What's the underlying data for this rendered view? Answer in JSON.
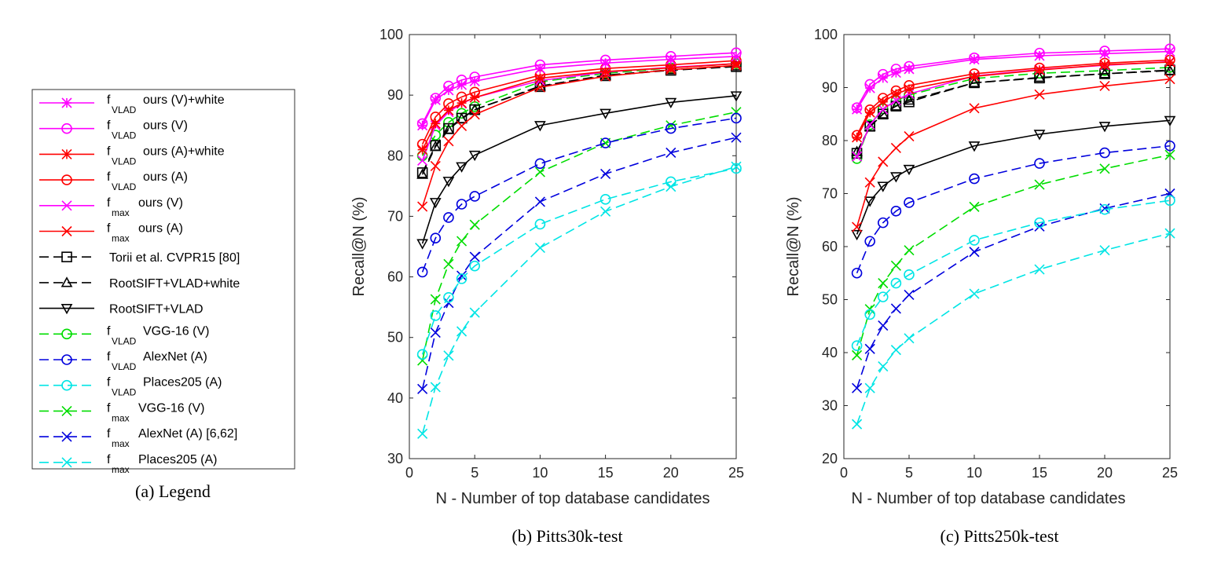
{
  "legend": {
    "caption": "(a) Legend",
    "entries": [
      {
        "main": "f",
        "sub": "VLAD",
        "text": "ours (V)+white",
        "color": "#ff00ff",
        "dash": "solid",
        "marker": "star"
      },
      {
        "main": "f",
        "sub": "VLAD",
        "text": "ours (V)",
        "color": "#ff00ff",
        "dash": "solid",
        "marker": "circle"
      },
      {
        "main": "f",
        "sub": "VLAD",
        "text": "ours (A)+white",
        "color": "#ff0000",
        "dash": "solid",
        "marker": "star"
      },
      {
        "main": "f",
        "sub": "VLAD",
        "text": "ours (A)",
        "color": "#ff0000",
        "dash": "solid",
        "marker": "circle"
      },
      {
        "main": "f",
        "sub": "max",
        "text": "ours (V)",
        "color": "#ff00ff",
        "dash": "solid",
        "marker": "x"
      },
      {
        "main": "f",
        "sub": "max",
        "text": "ours (A)",
        "color": "#ff0000",
        "dash": "solid",
        "marker": "x"
      },
      {
        "main": "",
        "sub": "",
        "text": "Torii et al. CVPR15 [80]",
        "color": "#000000",
        "dash": "dashed",
        "marker": "square"
      },
      {
        "main": "",
        "sub": "",
        "text": "RootSIFT+VLAD+white",
        "color": "#000000",
        "dash": "dashed",
        "marker": "triangle-up"
      },
      {
        "main": "",
        "sub": "",
        "text": "RootSIFT+VLAD",
        "color": "#000000",
        "dash": "solid",
        "marker": "triangle-down"
      },
      {
        "main": "f",
        "sub": "VLAD",
        "text": "VGG-16 (V)",
        "color": "#00dd00",
        "dash": "dashed",
        "marker": "circle"
      },
      {
        "main": "f",
        "sub": "VLAD",
        "text": "AlexNet (A)",
        "color": "#0000dd",
        "dash": "dashed",
        "marker": "circle"
      },
      {
        "main": "f",
        "sub": "VLAD",
        "text": "Places205 (A)",
        "color": "#00e5e5",
        "dash": "dashed",
        "marker": "circle"
      },
      {
        "main": "f",
        "sub": "max",
        "text": "VGG-16 (V)",
        "color": "#00dd00",
        "dash": "dashed",
        "marker": "x"
      },
      {
        "main": "f",
        "sub": "max",
        "text": "AlexNet (A) [6,62]",
        "color": "#0000dd",
        "dash": "dashed",
        "marker": "x"
      },
      {
        "main": "f",
        "sub": "max",
        "text": "Places205 (A)",
        "color": "#00e5e5",
        "dash": "dashed",
        "marker": "x"
      }
    ]
  },
  "chart_data": [
    {
      "type": "line",
      "caption": "(b) Pitts30k-test",
      "xlabel": "N - Number of top database candidates",
      "ylabel": "Recall@N (%)",
      "xlim": [
        0,
        25
      ],
      "ylim": [
        30,
        100
      ],
      "xticks": [
        0,
        5,
        10,
        15,
        20,
        25
      ],
      "yticks": [
        30,
        40,
        50,
        60,
        70,
        80,
        90,
        100
      ],
      "grid": false,
      "x": [
        1,
        2,
        3,
        4,
        5,
        10,
        15,
        20,
        25
      ],
      "series": [
        {
          "name": "f_VLAD ours (V)+white",
          "values": [
            85.0,
            89.2,
            90.8,
            91.7,
            92.3,
            94.4,
            95.3,
            95.9,
            96.4
          ]
        },
        {
          "name": "f_VLAD ours (V)",
          "values": [
            85.3,
            89.5,
            91.5,
            92.5,
            93.0,
            95.0,
            95.8,
            96.4,
            97.0
          ]
        },
        {
          "name": "f_VLAD ours (A)+white",
          "values": [
            81.0,
            85.3,
            87.5,
            88.7,
            89.6,
            92.8,
            93.9,
            94.5,
            95.2
          ]
        },
        {
          "name": "f_VLAD ours (A)",
          "values": [
            81.9,
            86.4,
            88.6,
            89.7,
            90.5,
            93.3,
            94.4,
            95.0,
            95.7
          ]
        },
        {
          "name": "f_max ours (V)",
          "values": [
            79.2,
            85.0,
            87.2,
            88.6,
            89.6,
            92.4,
            93.8,
            94.6,
            95.2
          ]
        },
        {
          "name": "f_max ours (A)",
          "values": [
            71.6,
            78.3,
            82.4,
            84.9,
            86.8,
            91.3,
            93.1,
            94.2,
            94.9
          ]
        },
        {
          "name": "Torii et al. CVPR15 [80]",
          "values": [
            77.2,
            81.7,
            84.5,
            86.2,
            87.6,
            91.4,
            93.2,
            94.1,
            94.7
          ]
        },
        {
          "name": "RootSIFT+VLAD+white",
          "values": [
            76.9,
            81.5,
            84.3,
            86.1,
            87.6,
            91.5,
            93.3,
            94.2,
            94.8
          ]
        },
        {
          "name": "RootSIFT+VLAD",
          "values": [
            65.5,
            72.3,
            75.8,
            78.2,
            80.1,
            85.0,
            87.0,
            88.8,
            89.9
          ]
        },
        {
          "name": "f_VLAD VGG-16 (V)",
          "values": [
            80.0,
            83.4,
            85.5,
            87.0,
            88.1,
            92.2,
            93.6,
            94.5,
            95.2
          ]
        },
        {
          "name": "f_VLAD AlexNet (A)",
          "values": [
            60.8,
            66.4,
            69.8,
            72.0,
            73.3,
            78.7,
            82.1,
            84.5,
            86.2
          ]
        },
        {
          "name": "f_VLAD Places205 (A)",
          "values": [
            47.2,
            53.6,
            56.6,
            59.7,
            61.8,
            68.7,
            72.8,
            75.7,
            77.9
          ]
        },
        {
          "name": "f_max VGG-16 (V)",
          "values": [
            46.2,
            56.3,
            62.1,
            65.9,
            68.6,
            77.3,
            82.1,
            85.0,
            87.2
          ]
        },
        {
          "name": "f_max AlexNet (A) [6,62]",
          "values": [
            41.5,
            50.8,
            55.7,
            60.2,
            63.3,
            72.4,
            77.0,
            80.5,
            83.0
          ]
        },
        {
          "name": "f_max Places205 (A)",
          "values": [
            34.1,
            41.8,
            47.0,
            51.0,
            54.1,
            64.8,
            70.8,
            74.9,
            78.2
          ]
        }
      ]
    },
    {
      "type": "line",
      "caption": "(c) Pitts250k-test",
      "xlabel": "N - Number of top database candidates",
      "ylabel": "Recall@N (%)",
      "xlim": [
        0,
        25
      ],
      "ylim": [
        20,
        100
      ],
      "xticks": [
        0,
        5,
        10,
        15,
        20,
        25
      ],
      "yticks": [
        20,
        30,
        40,
        50,
        60,
        70,
        80,
        90,
        100
      ],
      "grid": false,
      "x": [
        1,
        2,
        3,
        4,
        5,
        10,
        15,
        20,
        25
      ],
      "series": [
        {
          "name": "f_VLAD ours (V)+white",
          "values": [
            85.9,
            89.9,
            91.8,
            92.8,
            93.5,
            95.3,
            96.0,
            96.4,
            96.8
          ]
        },
        {
          "name": "f_VLAD ours (V)",
          "values": [
            86.2,
            90.6,
            92.5,
            93.5,
            94.0,
            95.6,
            96.5,
            96.9,
            97.3
          ]
        },
        {
          "name": "f_VLAD ours (A)+white",
          "values": [
            80.6,
            85.3,
            87.3,
            88.8,
            89.7,
            92.1,
            93.3,
            94.3,
            94.8
          ]
        },
        {
          "name": "f_VLAD ours (A)",
          "values": [
            81.0,
            85.8,
            88.0,
            89.4,
            90.4,
            92.6,
            93.7,
            94.6,
            95.2
          ]
        },
        {
          "name": "f_max ours (V)",
          "values": [
            77.0,
            83.0,
            85.9,
            87.6,
            88.8,
            92.2,
            93.4,
            94.2,
            94.9
          ]
        },
        {
          "name": "f_max ours (A)",
          "values": [
            63.7,
            72.1,
            76.0,
            78.6,
            80.8,
            86.1,
            88.7,
            90.3,
            91.6
          ]
        },
        {
          "name": "Torii et al. CVPR15 [80]",
          "values": [
            77.6,
            82.7,
            85.0,
            86.5,
            87.3,
            90.9,
            91.8,
            92.6,
            93.3
          ]
        },
        {
          "name": "RootSIFT+VLAD+white",
          "values": [
            77.9,
            82.6,
            85.0,
            86.5,
            87.6,
            90.9,
            91.9,
            92.6,
            93.2
          ]
        },
        {
          "name": "RootSIFT+VLAD",
          "values": [
            62.3,
            68.6,
            71.4,
            73.2,
            74.6,
            79.0,
            81.2,
            82.7,
            83.8
          ]
        },
        {
          "name": "f_VLAD VGG-16 (V)",
          "values": [
            76.6,
            83.0,
            86.0,
            87.5,
            88.6,
            91.7,
            92.7,
            93.2,
            93.8
          ]
        },
        {
          "name": "f_VLAD AlexNet (A)",
          "values": [
            55.0,
            61.0,
            64.5,
            66.7,
            68.3,
            72.8,
            75.7,
            77.7,
            79.0
          ]
        },
        {
          "name": "f_VLAD Places205 (A)",
          "values": [
            41.3,
            47.2,
            50.5,
            53.1,
            54.7,
            61.2,
            64.5,
            67.0,
            68.7
          ]
        },
        {
          "name": "f_max VGG-16 (V)",
          "values": [
            39.5,
            48.2,
            53.1,
            56.4,
            59.3,
            67.5,
            71.7,
            74.7,
            77.3
          ]
        },
        {
          "name": "f_max AlexNet (A) [6,62]",
          "values": [
            33.3,
            40.7,
            45.1,
            48.3,
            50.9,
            59.0,
            63.8,
            67.2,
            70.0
          ]
        },
        {
          "name": "f_max Places205 (A)",
          "values": [
            26.5,
            33.3,
            37.4,
            40.5,
            42.7,
            51.1,
            55.7,
            59.3,
            62.5
          ]
        }
      ]
    }
  ]
}
